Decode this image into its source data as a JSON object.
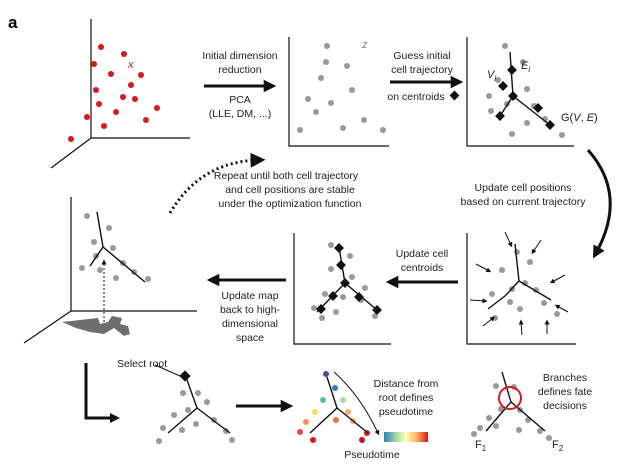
{
  "panel_label": "a",
  "steps": {
    "initial_reduction": [
      "Initial dimension",
      "reduction"
    ],
    "pca": [
      "PCA",
      "(LLE, DM, ...)"
    ],
    "guess_trajectory": [
      "Guess initial",
      "cell trajectory",
      "on centroids"
    ],
    "repeat": [
      "Repeat until both cell trajectory",
      "and cell positions are stable",
      "under the optimization function"
    ],
    "update_positions": [
      "Update cell positions",
      "based on current trajectory"
    ],
    "update_centroids": [
      "Update cell",
      "centroids"
    ],
    "update_map": [
      "Update map",
      "back to high-",
      "dimensional",
      "space"
    ],
    "select_root": "Select root",
    "distance_root": [
      "Distance from",
      "root defines",
      "pseudotime"
    ],
    "branches": [
      "Branches",
      "defines fate",
      "decisions"
    ],
    "pseudotime_label": "Pseudotime"
  },
  "labels": {
    "x_mark": "x",
    "z_mark": "z",
    "v_label": "V",
    "v_sub": "i",
    "e_label": "E",
    "e_sub": "i",
    "graph_prefix": "G(",
    "graph_v": "V",
    "graph_sep": ", ",
    "graph_e": "E",
    "graph_suffix": ")",
    "f1": "F",
    "f1_sub": "1",
    "f2": "F",
    "f2_sub": "2"
  },
  "colors": {
    "red_points": "#d7191c",
    "gray_points": "#9a9a9a",
    "root_circle": "#d7191c",
    "pseudotime_gradient": [
      "#2b83ba",
      "#abdda4",
      "#ffffbf",
      "#fdae61",
      "#d7191c"
    ]
  },
  "icons": [
    "diamond-icon"
  ]
}
